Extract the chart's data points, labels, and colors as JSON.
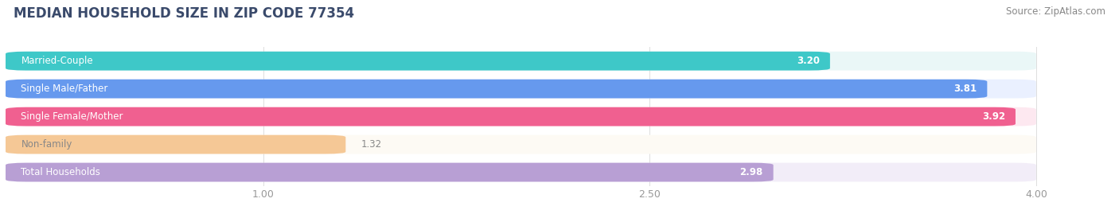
{
  "title": "MEDIAN HOUSEHOLD SIZE IN ZIP CODE 77354",
  "source": "Source: ZipAtlas.com",
  "categories": [
    "Married-Couple",
    "Single Male/Father",
    "Single Female/Mother",
    "Non-family",
    "Total Households"
  ],
  "values": [
    3.2,
    3.81,
    3.92,
    1.32,
    2.98
  ],
  "bar_colors": [
    "#3EC8C8",
    "#6699EE",
    "#F06090",
    "#F5C896",
    "#B89FD4"
  ],
  "bar_bg_colors": [
    "#EAF7F7",
    "#EAF0FF",
    "#FDE8F0",
    "#FDFAF4",
    "#F2EDF8"
  ],
  "xlim_start": 0.0,
  "xlim_end": 4.3,
  "data_min": 0.0,
  "data_max": 4.0,
  "xticks": [
    1.0,
    2.5,
    4.0
  ],
  "xtick_labels": [
    "1.00",
    "2.50",
    "4.00"
  ],
  "title_fontsize": 12,
  "source_fontsize": 8.5,
  "label_fontsize": 8.5,
  "value_fontsize": 8.5,
  "title_color": "#3A4A6B",
  "source_color": "#888888",
  "tick_color": "#999999",
  "background_color": "#FFFFFF",
  "label_text_colors": [
    "white",
    "white",
    "white",
    "#888888",
    "white"
  ],
  "value_text_colors_inside": [
    "white",
    "white",
    "white",
    "#888888",
    "white"
  ]
}
